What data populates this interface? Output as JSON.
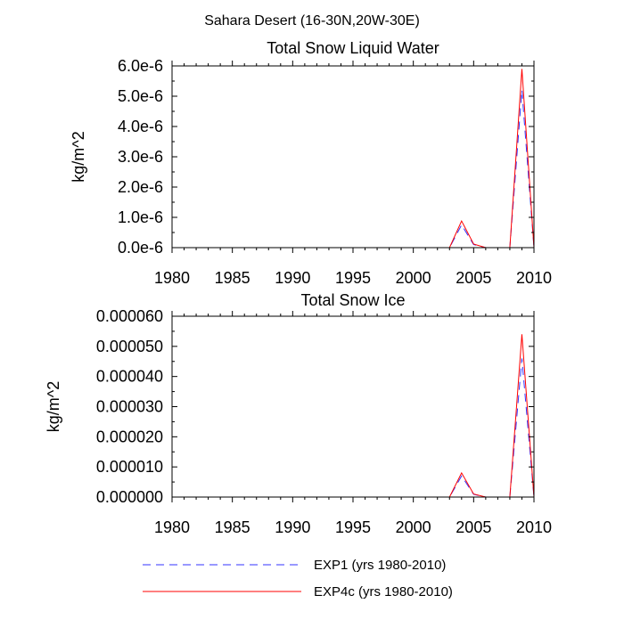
{
  "figure_title": "Sahara Desert (16-30N,20W-30E)",
  "chart_data": [
    {
      "type": "line",
      "title": "Total Snow Liquid Water",
      "xlabel": "",
      "ylabel": "kg/m^2",
      "xlim": [
        1980,
        2010
      ],
      "ylim": [
        0,
        6e-06
      ],
      "x_ticks": [
        1980,
        1985,
        1990,
        1995,
        2000,
        2005,
        2010
      ],
      "x_tick_labels": [
        "1980",
        "1985",
        "1990",
        "1995",
        "2000",
        "2005",
        "2010"
      ],
      "y_ticks": [
        0,
        1e-06,
        2e-06,
        3e-06,
        4e-06,
        5e-06,
        6e-06
      ],
      "y_tick_labels": [
        "0.0e-6",
        "1.0e-6",
        "2.0e-6",
        "3.0e-6",
        "4.0e-6",
        "5.0e-6",
        "6.0e-6"
      ],
      "x": [
        1980,
        1981,
        1982,
        1983,
        1984,
        1985,
        1986,
        1987,
        1988,
        1989,
        1990,
        1991,
        1992,
        1993,
        1994,
        1995,
        1996,
        1997,
        1998,
        1999,
        2000,
        2001,
        2002,
        2003,
        2004,
        2005,
        2006,
        2007,
        2008,
        2009,
        2010
      ],
      "series": [
        {
          "name": "EXP1 (yrs 1980-2010)",
          "color": "#3333ff",
          "dash": "dashed",
          "values": [
            0,
            0,
            0,
            0,
            0,
            0,
            0,
            0,
            0,
            0,
            0,
            0,
            0,
            0,
            0,
            0,
            0,
            0,
            0,
            0,
            0,
            0,
            0,
            0,
            7.5e-07,
            1e-07,
            0,
            0,
            0,
            5.2e-06,
            0
          ]
        },
        {
          "name": "EXP4c (yrs 1980-2010)",
          "color": "#ff0000",
          "dash": "solid",
          "values": [
            0,
            0,
            0,
            0,
            0,
            0,
            0,
            0,
            0,
            0,
            0,
            0,
            0,
            0,
            0,
            0,
            0,
            0,
            0,
            0,
            0,
            0,
            0,
            0,
            8.8e-07,
            1.2e-07,
            0,
            0,
            0,
            5.9e-06,
            0
          ]
        }
      ]
    },
    {
      "type": "line",
      "title": "Total Snow Ice",
      "xlabel": "",
      "ylabel": "kg/m^2",
      "xlim": [
        1980,
        2010
      ],
      "ylim": [
        0,
        6e-05
      ],
      "x_ticks": [
        1980,
        1985,
        1990,
        1995,
        2000,
        2005,
        2010
      ],
      "x_tick_labels": [
        "1980",
        "1985",
        "1990",
        "1995",
        "2000",
        "2005",
        "2010"
      ],
      "y_ticks": [
        0,
        1e-05,
        2e-05,
        3e-05,
        4e-05,
        5e-05,
        6e-05
      ],
      "y_tick_labels": [
        "0.000000",
        "0.000010",
        "0.000020",
        "0.000030",
        "0.000040",
        "0.000050",
        "0.000060"
      ],
      "x": [
        1980,
        1981,
        1982,
        1983,
        1984,
        1985,
        1986,
        1987,
        1988,
        1989,
        1990,
        1991,
        1992,
        1993,
        1994,
        1995,
        1996,
        1997,
        1998,
        1999,
        2000,
        2001,
        2002,
        2003,
        2004,
        2005,
        2006,
        2007,
        2008,
        2009,
        2010
      ],
      "series": [
        {
          "name": "EXP1 (yrs 1980-2010)",
          "color": "#3333ff",
          "dash": "dashed",
          "values": [
            0,
            0,
            0,
            0,
            0,
            0,
            0,
            0,
            0,
            0,
            0,
            0,
            0,
            0,
            0,
            0,
            0,
            0,
            0,
            0,
            0,
            0,
            0,
            0,
            7e-06,
            9e-07,
            0,
            0,
            0,
            4.6e-05,
            0
          ]
        },
        {
          "name": "EXP4c (yrs 1980-2010)",
          "color": "#ff0000",
          "dash": "solid",
          "values": [
            0,
            0,
            0,
            0,
            0,
            0,
            0,
            0,
            0,
            0,
            0,
            0,
            0,
            0,
            0,
            0,
            0,
            0,
            0,
            0,
            0,
            0,
            0,
            0,
            8e-06,
            1e-06,
            0,
            0,
            0,
            5.4e-05,
            0
          ]
        }
      ]
    }
  ],
  "legend": [
    {
      "label": "EXP1 (yrs 1980-2010)",
      "color": "#3333ff",
      "dash": "dashed"
    },
    {
      "label": "EXP4c (yrs 1980-2010)",
      "color": "#ff0000",
      "dash": "solid"
    }
  ]
}
